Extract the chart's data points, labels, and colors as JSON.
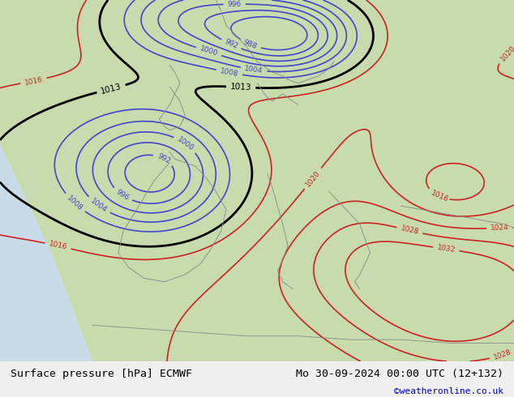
{
  "title_left": "Surface pressure [hPa] ECMWF",
  "title_right": "Mo 30-09-2024 00:00 UTC (12+132)",
  "credit": "©weatheronline.co.uk",
  "bottom_bar_color": "#f0f0f0",
  "bottom_text_color": "#000000",
  "credit_color": "#0000cc",
  "fig_width": 6.34,
  "fig_height": 4.9,
  "blue_levels": [
    988,
    992,
    996,
    1000,
    1004,
    1008
  ],
  "black_levels": [
    1013
  ],
  "red_levels": [
    1016,
    1020,
    1024,
    1028,
    1032
  ]
}
